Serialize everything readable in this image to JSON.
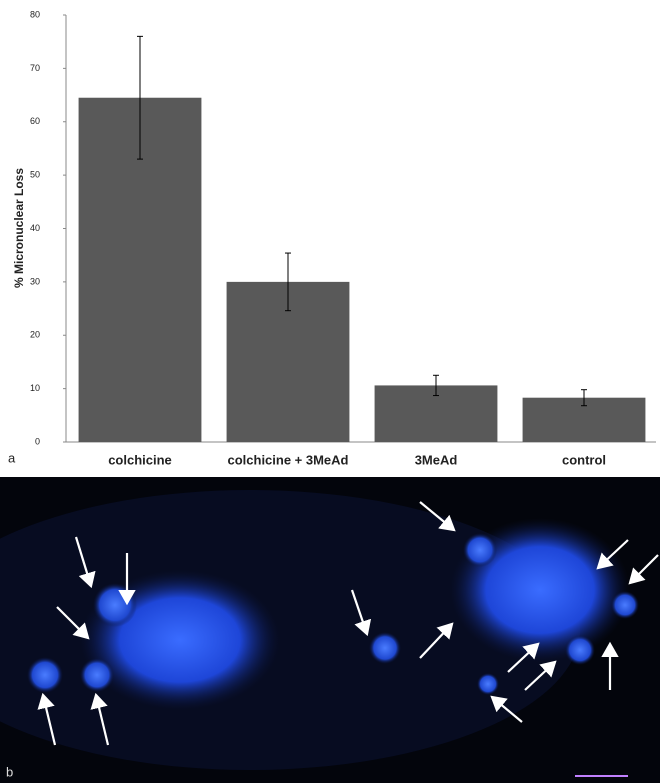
{
  "chart_data": {
    "type": "bar",
    "ylabel": "% Micronuclear Loss",
    "categories": [
      "colchicine",
      "colchicine + 3MeAd",
      "3MeAd",
      "control"
    ],
    "values": [
      64.5,
      30,
      10.6,
      8.3
    ],
    "errors": [
      11.5,
      5.4,
      1.9,
      1.5
    ],
    "color": "#595959",
    "ylim": [
      0,
      80
    ],
    "yticks": [
      0,
      10,
      20,
      30,
      40,
      50,
      60,
      70,
      80
    ],
    "grid": false
  },
  "panels": {
    "a": "a",
    "b": "b"
  }
}
